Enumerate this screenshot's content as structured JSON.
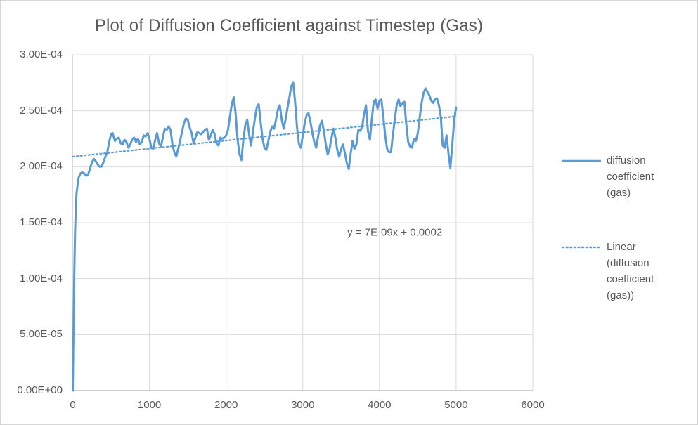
{
  "chart_data": {
    "type": "line",
    "title": "Plot of Diffusion Coefficient against Timestep (Gas)",
    "xlabel": "",
    "ylabel": "",
    "xlim": [
      0,
      6000
    ],
    "ylim": [
      0,
      0.0003
    ],
    "grid": true,
    "legend_position": "right",
    "x_ticks": [
      0,
      1000,
      2000,
      3000,
      4000,
      5000,
      6000
    ],
    "x_tick_labels": [
      "0",
      "1000",
      "2000",
      "3000",
      "4000",
      "5000",
      "6000"
    ],
    "y_ticks": [
      0,
      5e-05,
      0.0001,
      0.00015,
      0.0002,
      0.00025,
      0.0003
    ],
    "y_tick_labels": [
      "0.00E+00",
      "5.00E-05",
      "1.00E-04",
      "1.50E-04",
      "2.00E-04",
      "2.50E-04",
      "3.00E-04"
    ],
    "colors": {
      "series_blue": "#5B9BD5",
      "text_gray": "#595959",
      "gridline": "#D9D9D9",
      "axis_line": "#BFBFBF"
    },
    "annotations": [
      {
        "text": "y = 7E-09x + 0.0002",
        "x": 4200,
        "y": 0.000141
      }
    ],
    "series": [
      {
        "name": "diffusion coefficient (gas)",
        "style": "solid",
        "color": "#5B9BD5",
        "points": [
          [
            0,
            0
          ],
          [
            10,
            5.5e-05
          ],
          [
            20,
            0.000105
          ],
          [
            30,
            0.000142
          ],
          [
            40,
            0.000164
          ],
          [
            50,
            0.000177
          ],
          [
            75,
            0.00019
          ],
          [
            100,
            0.000194
          ],
          [
            125,
            0.000195
          ],
          [
            150,
            0.000194
          ],
          [
            175,
            0.000192
          ],
          [
            200,
            0.000193
          ],
          [
            225,
            0.000198
          ],
          [
            250,
            0.000204
          ],
          [
            275,
            0.000207
          ],
          [
            300,
            0.000205
          ],
          [
            325,
            0.000202
          ],
          [
            350,
            0.0002
          ],
          [
            375,
            0.0002
          ],
          [
            400,
            0.000204
          ],
          [
            425,
            0.000209
          ],
          [
            450,
            0.000213
          ],
          [
            475,
            0.000222
          ],
          [
            500,
            0.000229
          ],
          [
            520,
            0.00023
          ],
          [
            550,
            0.000223
          ],
          [
            575,
            0.000225
          ],
          [
            600,
            0.000226
          ],
          [
            625,
            0.000221
          ],
          [
            650,
            0.00022
          ],
          [
            675,
            0.000224
          ],
          [
            700,
            0.000222
          ],
          [
            725,
            0.000217
          ],
          [
            750,
            0.00022
          ],
          [
            775,
            0.000224
          ],
          [
            800,
            0.000226
          ],
          [
            825,
            0.000222
          ],
          [
            850,
            0.000225
          ],
          [
            875,
            0.00022
          ],
          [
            900,
            0.000222
          ],
          [
            925,
            0.000228
          ],
          [
            950,
            0.000227
          ],
          [
            975,
            0.00023
          ],
          [
            1000,
            0.000225
          ],
          [
            1025,
            0.000217
          ],
          [
            1050,
            0.000216
          ],
          [
            1075,
            0.000224
          ],
          [
            1100,
            0.00023
          ],
          [
            1125,
            0.000221
          ],
          [
            1150,
            0.000218
          ],
          [
            1175,
            0.000226
          ],
          [
            1200,
            0.000234
          ],
          [
            1225,
            0.000233
          ],
          [
            1250,
            0.000236
          ],
          [
            1275,
            0.000233
          ],
          [
            1300,
            0.00022
          ],
          [
            1325,
            0.000213
          ],
          [
            1350,
            0.000209
          ],
          [
            1375,
            0.000216
          ],
          [
            1400,
            0.000223
          ],
          [
            1425,
            0.000231
          ],
          [
            1450,
            0.000239
          ],
          [
            1475,
            0.000243
          ],
          [
            1500,
            0.000242
          ],
          [
            1525,
            0.000235
          ],
          [
            1550,
            0.00023
          ],
          [
            1575,
            0.000221
          ],
          [
            1600,
            0.000226
          ],
          [
            1625,
            0.000231
          ],
          [
            1650,
            0.00023
          ],
          [
            1675,
            0.000229
          ],
          [
            1700,
            0.000231
          ],
          [
            1725,
            0.000233
          ],
          [
            1750,
            0.000234
          ],
          [
            1775,
            0.000224
          ],
          [
            1800,
            0.000228
          ],
          [
            1825,
            0.000233
          ],
          [
            1850,
            0.000229
          ],
          [
            1875,
            0.000221
          ],
          [
            1900,
            0.000219
          ],
          [
            1925,
            0.000226
          ],
          [
            1950,
            0.000225
          ],
          [
            1975,
            0.000226
          ],
          [
            2000,
            0.000228
          ],
          [
            2025,
            0.000233
          ],
          [
            2050,
            0.000245
          ],
          [
            2075,
            0.000256
          ],
          [
            2100,
            0.000262
          ],
          [
            2125,
            0.000247
          ],
          [
            2150,
            0.000224
          ],
          [
            2175,
            0.000211
          ],
          [
            2200,
            0.000206
          ],
          [
            2225,
            0.000224
          ],
          [
            2250,
            0.000237
          ],
          [
            2275,
            0.000242
          ],
          [
            2300,
            0.000229
          ],
          [
            2325,
            0.000219
          ],
          [
            2350,
            0.000231
          ],
          [
            2375,
            0.000243
          ],
          [
            2400,
            0.000253
          ],
          [
            2425,
            0.000256
          ],
          [
            2450,
            0.00024
          ],
          [
            2475,
            0.000225
          ],
          [
            2500,
            0.000217
          ],
          [
            2525,
            0.000215
          ],
          [
            2550,
            0.000223
          ],
          [
            2575,
            0.000231
          ],
          [
            2600,
            0.000236
          ],
          [
            2625,
            0.000234
          ],
          [
            2650,
            0.000242
          ],
          [
            2675,
            0.000251
          ],
          [
            2700,
            0.000255
          ],
          [
            2725,
            0.000242
          ],
          [
            2750,
            0.000234
          ],
          [
            2775,
            0.000242
          ],
          [
            2800,
            0.000252
          ],
          [
            2825,
            0.000262
          ],
          [
            2850,
            0.000272
          ],
          [
            2875,
            0.000275
          ],
          [
            2900,
            0.000258
          ],
          [
            2925,
            0.000235
          ],
          [
            2950,
            0.00022
          ],
          [
            2975,
            0.000217
          ],
          [
            3000,
            0.000228
          ],
          [
            3025,
            0.000239
          ],
          [
            3050,
            0.000246
          ],
          [
            3075,
            0.000248
          ],
          [
            3100,
            0.00024
          ],
          [
            3125,
            0.00023
          ],
          [
            3150,
            0.000222
          ],
          [
            3175,
            0.000217
          ],
          [
            3200,
            0.000227
          ],
          [
            3225,
            0.000237
          ],
          [
            3250,
            0.000241
          ],
          [
            3275,
            0.000232
          ],
          [
            3300,
            0.00022
          ],
          [
            3325,
            0.000211
          ],
          [
            3350,
            0.000216
          ],
          [
            3375,
            0.000226
          ],
          [
            3400,
            0.000234
          ],
          [
            3425,
            0.000226
          ],
          [
            3450,
            0.000215
          ],
          [
            3475,
            0.000209
          ],
          [
            3500,
            0.000216
          ],
          [
            3525,
            0.00022
          ],
          [
            3550,
            0.000212
          ],
          [
            3575,
            0.000203
          ],
          [
            3600,
            0.000198
          ],
          [
            3625,
            0.000212
          ],
          [
            3650,
            0.000223
          ],
          [
            3675,
            0.000216
          ],
          [
            3700,
            0.00022
          ],
          [
            3725,
            0.000233
          ],
          [
            3750,
            0.000232
          ],
          [
            3775,
            0.000236
          ],
          [
            3800,
            0.000247
          ],
          [
            3825,
            0.000255
          ],
          [
            3850,
            0.000232
          ],
          [
            3875,
            0.000224
          ],
          [
            3900,
            0.000242
          ],
          [
            3925,
            0.000258
          ],
          [
            3950,
            0.00026
          ],
          [
            3975,
            0.000252
          ],
          [
            4000,
            0.000259
          ],
          [
            4025,
            0.00026
          ],
          [
            4050,
            0.000245
          ],
          [
            4075,
            0.000228
          ],
          [
            4100,
            0.000216
          ],
          [
            4125,
            0.000213
          ],
          [
            4150,
            0.000213
          ],
          [
            4175,
            0.000228
          ],
          [
            4200,
            0.000242
          ],
          [
            4225,
            0.000255
          ],
          [
            4250,
            0.00026
          ],
          [
            4275,
            0.000254
          ],
          [
            4300,
            0.000257
          ],
          [
            4325,
            0.000258
          ],
          [
            4350,
            0.000238
          ],
          [
            4375,
            0.000222
          ],
          [
            4400,
            0.000218
          ],
          [
            4425,
            0.000217
          ],
          [
            4450,
            0.000225
          ],
          [
            4475,
            0.000223
          ],
          [
            4500,
            0.00023
          ],
          [
            4525,
            0.000244
          ],
          [
            4550,
            0.000257
          ],
          [
            4575,
            0.000266
          ],
          [
            4600,
            0.00027
          ],
          [
            4625,
            0.000267
          ],
          [
            4650,
            0.000264
          ],
          [
            4675,
            0.000259
          ],
          [
            4700,
            0.000257
          ],
          [
            4725,
            0.00026
          ],
          [
            4750,
            0.000261
          ],
          [
            4775,
            0.000255
          ],
          [
            4800,
            0.000245
          ],
          [
            4825,
            0.000219
          ],
          [
            4850,
            0.000217
          ],
          [
            4875,
            0.000228
          ],
          [
            4900,
            0.000212
          ],
          [
            4925,
            0.000199
          ],
          [
            4950,
            0.00022
          ],
          [
            4975,
            0.000242
          ],
          [
            5000,
            0.000253
          ]
        ]
      },
      {
        "name": "Linear (diffusion coefficient (gas))",
        "style": "dotted",
        "color": "#5B9BD5",
        "points": [
          [
            0,
            0.000209
          ],
          [
            5000,
            0.000245
          ]
        ],
        "equation": "y = 7E-09x + 0.0002"
      }
    ]
  }
}
